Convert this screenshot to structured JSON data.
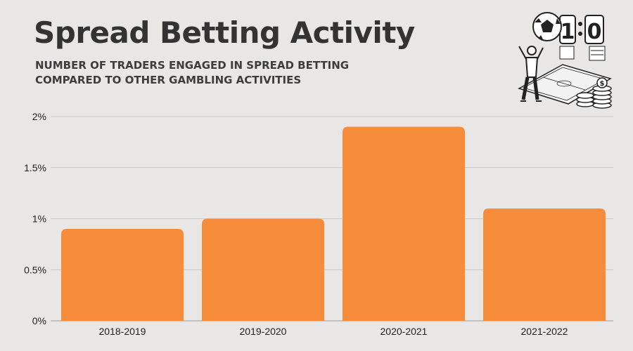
{
  "header": {
    "title": "Spread Betting Activity",
    "subtitle_line1": "NUMBER OF TRADERS ENGAGED IN SPREAD BETTING",
    "subtitle_line2": "COMPARED TO OTHER GAMBLING ACTIVITIES"
  },
  "illustration": {
    "icon": "football-fan-scoreboard-icon",
    "score_home": "1",
    "score_away": "0"
  },
  "colors": {
    "bar": "#f78c3b",
    "grid": "#c9c9c9",
    "axis": "#9a9a9a",
    "background": "#e8e7e6"
  },
  "chart_data": {
    "type": "bar",
    "categories": [
      "2018-2019",
      "2019-2020",
      "2020-2021",
      "2021-2022"
    ],
    "values": [
      0.9,
      1.0,
      1.9,
      1.1
    ],
    "unit": "%",
    "ylim": [
      0,
      2
    ],
    "yticks": [
      0,
      0.5,
      1,
      1.5,
      2
    ],
    "ytick_labels": [
      "0%",
      "0.5%",
      "1%",
      "1.5%",
      "2%"
    ],
    "grid": true,
    "legend": false,
    "xlabel": "",
    "ylabel": ""
  }
}
